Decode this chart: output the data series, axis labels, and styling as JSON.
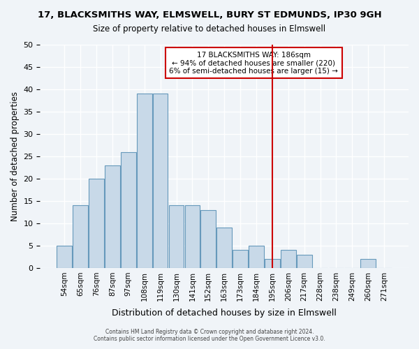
{
  "title_line1": "17, BLACKSMITHS WAY, ELMSWELL, BURY ST EDMUNDS, IP30 9GH",
  "title_line2": "Size of property relative to detached houses in Elmswell",
  "xlabel": "Distribution of detached houses by size in Elmswell",
  "ylabel": "Number of detached properties",
  "bar_labels": [
    "54sqm",
    "65sqm",
    "76sqm",
    "87sqm",
    "97sqm",
    "108sqm",
    "119sqm",
    "130sqm",
    "141sqm",
    "152sqm",
    "163sqm",
    "173sqm",
    "184sqm",
    "195sqm",
    "206sqm",
    "217sqm",
    "228sqm",
    "238sqm",
    "249sqm",
    "260sqm",
    "271sqm"
  ],
  "bar_values": [
    5,
    14,
    20,
    23,
    26,
    39,
    39,
    14,
    14,
    13,
    9,
    4,
    5,
    2,
    4,
    3,
    0,
    0,
    0,
    2,
    0
  ],
  "bar_color": "#c8d9e8",
  "bar_edge_color": "#6699bb",
  "ylim": [
    0,
    50
  ],
  "yticks": [
    0,
    5,
    10,
    15,
    20,
    25,
    30,
    35,
    40,
    45,
    50
  ],
  "vline_x": 13,
  "vline_color": "#cc0000",
  "annotation_title": "17 BLACKSMITHS WAY: 186sqm",
  "annotation_line1": "← 94% of detached houses are smaller (220)",
  "annotation_line2": "6% of semi-detached houses are larger (15) →",
  "annotation_box_color": "#cc0000",
  "footer_line1": "Contains HM Land Registry data © Crown copyright and database right 2024.",
  "footer_line2": "Contains public sector information licensed under the Open Government Licence v3.0.",
  "background_color": "#f0f4f8",
  "grid_color": "#ffffff"
}
